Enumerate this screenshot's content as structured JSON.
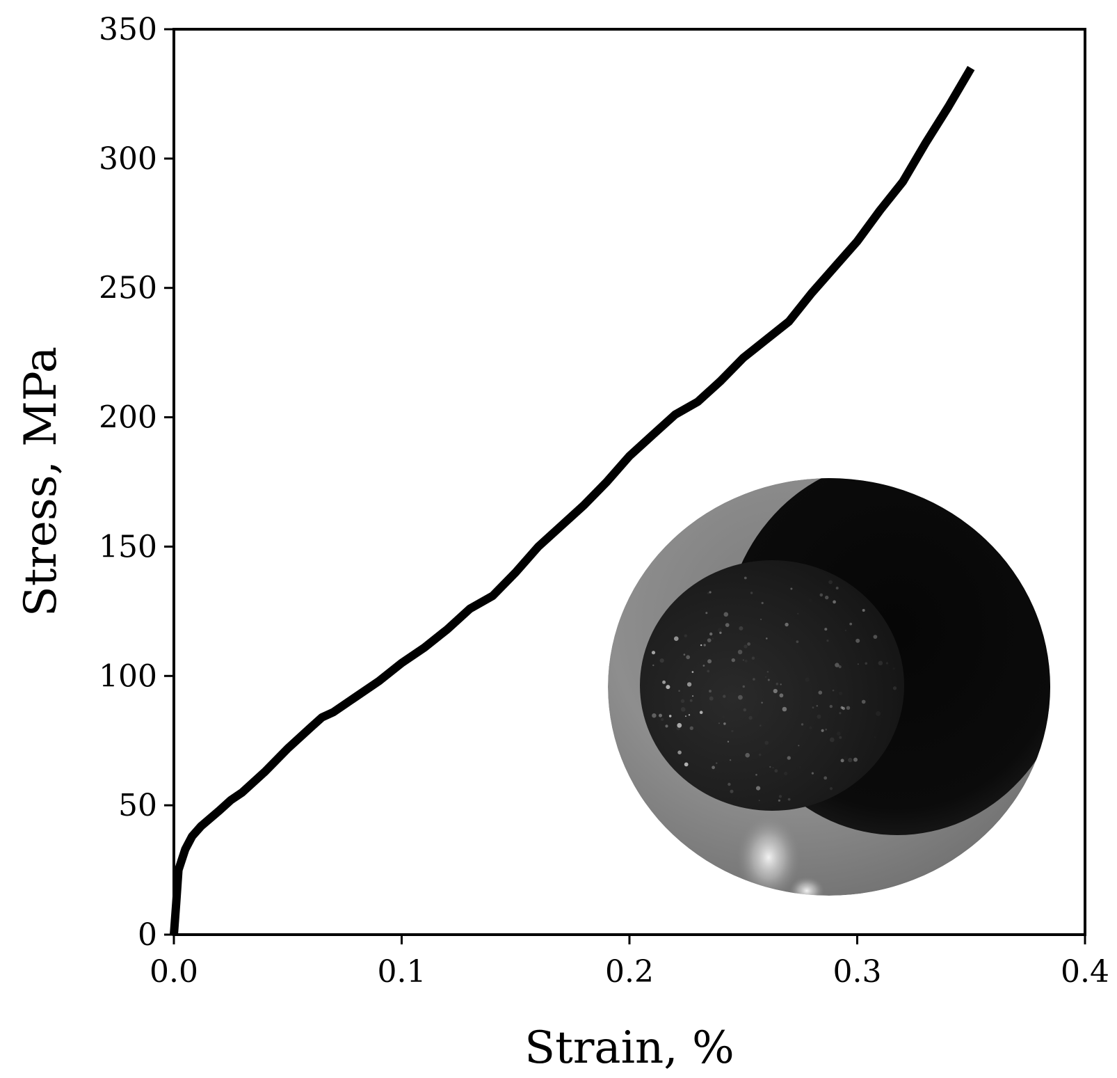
{
  "chart_data": {
    "type": "line",
    "title": "",
    "xlabel": "Strain, %",
    "ylabel": "Stress, MPa",
    "xlim": [
      0.0,
      0.4
    ],
    "ylim": [
      0,
      350
    ],
    "xticks": [
      0.0,
      0.1,
      0.2,
      0.3,
      0.4
    ],
    "xtick_labels": [
      "0.0",
      "0.1",
      "0.2",
      "0.3",
      "0.4"
    ],
    "yticks": [
      0,
      50,
      100,
      150,
      200,
      250,
      300,
      350
    ],
    "ytick_labels": [
      "0",
      "50",
      "100",
      "150",
      "200",
      "250",
      "300",
      "350"
    ],
    "grid": false,
    "legend": false,
    "line_color": "#000000",
    "inset_image": "fracture-surface-photo",
    "series": [
      {
        "x": [
          0.0,
          0.001,
          0.002,
          0.005,
          0.008,
          0.012,
          0.02,
          0.025,
          0.03,
          0.04,
          0.05,
          0.06,
          0.065,
          0.07,
          0.08,
          0.09,
          0.1,
          0.11,
          0.12,
          0.13,
          0.14,
          0.15,
          0.16,
          0.17,
          0.18,
          0.19,
          0.2,
          0.21,
          0.22,
          0.23,
          0.24,
          0.25,
          0.26,
          0.27,
          0.28,
          0.29,
          0.3,
          0.31,
          0.32,
          0.33,
          0.34,
          0.35
        ],
        "y": [
          0,
          12,
          25,
          33,
          38,
          42,
          48,
          52,
          55,
          63,
          72,
          80,
          84,
          86,
          92,
          98,
          105,
          111,
          118,
          126,
          131,
          140,
          150,
          158,
          166,
          175,
          185,
          193,
          201,
          206,
          214,
          223,
          230,
          237,
          248,
          258,
          268,
          280,
          291,
          306,
          320,
          335
        ]
      }
    ]
  }
}
